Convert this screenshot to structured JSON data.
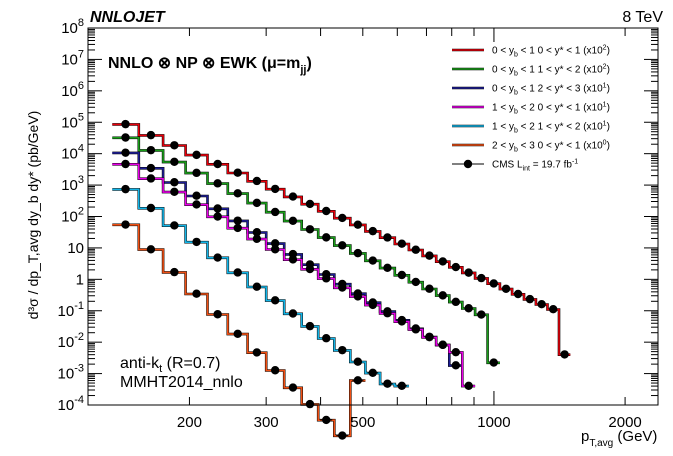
{
  "header": {
    "left_title": "NNLOJET",
    "right_title": "8 TeV"
  },
  "annotations": {
    "theory": "NNLO ⊗ NP ⊗ EWK (μ=m",
    "theory_sub": "jj",
    "theory_close": ")",
    "jet_algo": "anti-k",
    "jet_algo_sub": "t",
    "jet_algo_rest": " (R=0.7)",
    "pdf": "MMHT2014_nnlo"
  },
  "chart_data": {
    "type": "line",
    "xscale": "log",
    "yscale": "log",
    "xlim": [
      117,
      2380
    ],
    "ylim": [
      0.0001,
      100000000
    ],
    "xlabel": "p",
    "xlabel_sub": "T,avg",
    "xlabel_unit": " (GeV)",
    "ylabel": "d³σ / dp_T,avg dy_b dy* (pb/GeV)",
    "xticks": [
      {
        "value": 200,
        "label": "200"
      },
      {
        "value": 300,
        "label": "300"
      },
      {
        "value": 500,
        "label": "500"
      },
      {
        "value": 1000,
        "label": "1000"
      },
      {
        "value": 2000,
        "label": "2000"
      }
    ],
    "yticks": [
      {
        "value": 100000000,
        "base": "10",
        "exp": "8"
      },
      {
        "value": 10000000,
        "base": "10",
        "exp": "7"
      },
      {
        "value": 1000000,
        "base": "10",
        "exp": "6"
      },
      {
        "value": 100000,
        "base": "10",
        "exp": "5"
      },
      {
        "value": 10000,
        "base": "10",
        "exp": "4"
      },
      {
        "value": 1000,
        "base": "10",
        "exp": "3"
      },
      {
        "value": 100,
        "base": "10",
        "exp": "2"
      },
      {
        "value": 10,
        "base": "10",
        "exp": ""
      },
      {
        "value": 1,
        "base": "1",
        "exp": ""
      },
      {
        "value": 0.1,
        "base": "10",
        "exp": "-1"
      },
      {
        "value": 0.01,
        "base": "10",
        "exp": "-2"
      },
      {
        "value": 0.001,
        "base": "10",
        "exp": "-3"
      },
      {
        "value": 0.0001,
        "base": "10",
        "exp": "-4"
      }
    ],
    "series": [
      {
        "name": "0 < y_b < 1   0 < y* < 1 (x10²)",
        "yb_label": "0 < y",
        "yb_range": " < 1",
        "ystar_label": "0 < y* < 1 (x10",
        "scale_exp": "2",
        "color": "#e8000b",
        "x0": 133,
        "p0": 130000,
        "exponent": -6.0,
        "n_points": 29,
        "data_start": 0,
        "last_y": 0.004
      },
      {
        "name": "0 < y_b < 1   1 < y* < 2 (x10²)",
        "yb_label": "0 < y",
        "yb_range": " < 1",
        "ystar_label": "1 < y* < 2 (x10",
        "scale_exp": "2",
        "color": "#1a9e1a",
        "x0": 133,
        "p0": 52000,
        "exponent": -6.9,
        "n_points": 23,
        "data_start": 0,
        "last_y": 0.0022
      },
      {
        "name": "0 < y_b < 1   2 < y* < 3 (x10¹)",
        "yb_label": "0 < y",
        "yb_range": " < 1",
        "ystar_label": "2 < y* < 3 (x10",
        "scale_exp": "1",
        "color": "#1e1e96",
        "x0": 133,
        "p0": 19000,
        "exponent": -8.4,
        "n_points": 20,
        "data_start": 0,
        "last_y": 0.0018
      },
      {
        "name": "1 < y_b < 2   0 < y* < 1 (x10¹)",
        "yb_label": "1 < y",
        "yb_range": " < 2",
        "ystar_label": "0 < y* < 1 (x10",
        "scale_exp": "1",
        "color": "#e800e8",
        "x0": 133,
        "p0": 8000,
        "exponent": -7.9,
        "n_points": 21,
        "data_start": 0,
        "last_y": 0.0004
      },
      {
        "name": "1 < y_b < 2   1 < y* < 2 (x10¹)",
        "yb_label": "1 < y",
        "yb_range": " < 2",
        "ystar_label": "1 < y* < 2 (x10",
        "scale_exp": "1",
        "color": "#14b4e6",
        "x0": 133,
        "p0": 1500,
        "exponent": -10.3,
        "n_points": 16,
        "data_start": 0,
        "last_y": 0.0004
      },
      {
        "name": "2 < y_b < 3   0 < y* < 1 (x10⁰)",
        "yb_label": "2 < y",
        "yb_range": " < 3",
        "ystar_label": "0 < y* < 1 (x10",
        "scale_exp": "0",
        "color": "#f05014",
        "x0": 133,
        "p0": 140,
        "exponent": -13.5,
        "n_points": 13,
        "data_start": 0,
        "last_y": 0.0006
      }
    ],
    "data_legend": {
      "label": "CMS L",
      "sub": "int",
      "rest": " = 19.7 fb",
      "exp": "-1"
    },
    "bin_edges": [
      133,
      153,
      174,
      196,
      220,
      245,
      272,
      300,
      330,
      362,
      395,
      430,
      468,
      507,
      548,
      592,
      638,
      686,
      737,
      790,
      846,
      905,
      967,
      1032,
      1101,
      1172,
      1248,
      1327,
      1410,
      1497,
      1588,
      1784
    ]
  }
}
